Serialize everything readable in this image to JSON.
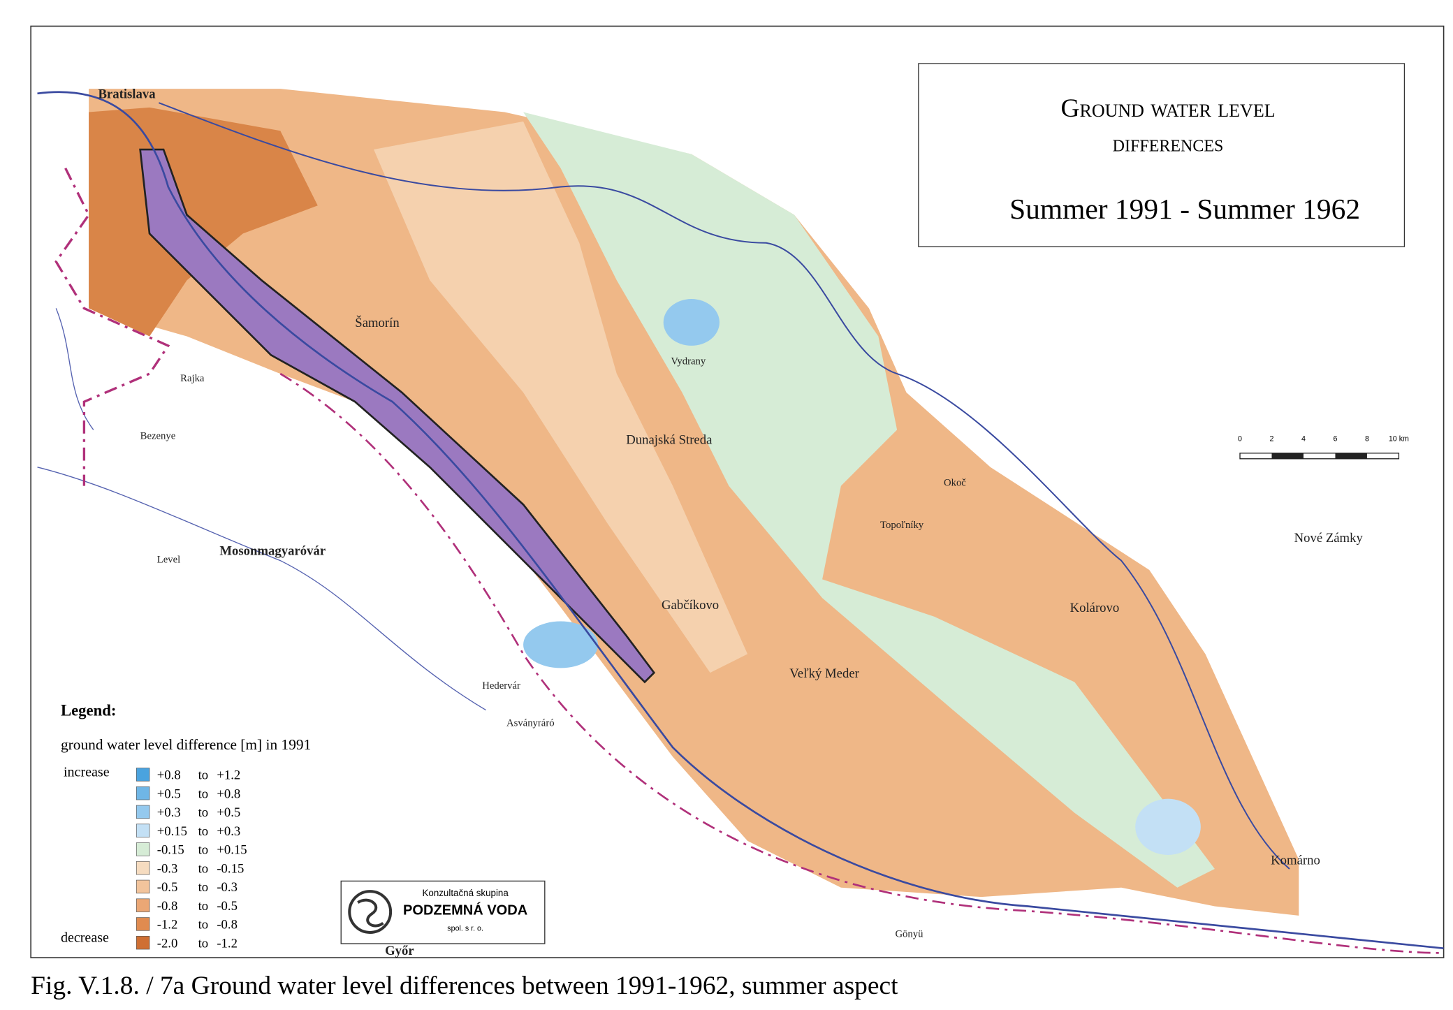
{
  "title": {
    "line1": "Ground water level",
    "line2": "differences",
    "period": "Summer 1991 - Summer 1962"
  },
  "legend": {
    "heading": "Legend:",
    "subtitle": "ground water level difference [m]  in 1991",
    "increase": "increase",
    "decrease": "decrease",
    "joiner": "to",
    "items": [
      {
        "from": "+0.8",
        "to": "+1.2",
        "color": "#4aa3df"
      },
      {
        "from": "+0.5",
        "to": "+0.8",
        "color": "#6fb6e6"
      },
      {
        "from": "+0.3",
        "to": "+0.5",
        "color": "#94c9ee"
      },
      {
        "from": "+0.15",
        "to": "+0.3",
        "color": "#c3e0f5"
      },
      {
        "from": "-0.15",
        "to": "+0.15",
        "color": "#d6ecd6"
      },
      {
        "from": "-0.3",
        "to": "-0.15",
        "color": "#f6dcc0"
      },
      {
        "from": "-0.5",
        "to": "-0.3",
        "color": "#f2c49c"
      },
      {
        "from": "-0.8",
        "to": "-0.5",
        "color": "#eba775"
      },
      {
        "from": "-1.2",
        "to": "-0.8",
        "color": "#e08b50"
      },
      {
        "from": "-2.0",
        "to": "-1.2",
        "color": "#cf6f33"
      }
    ]
  },
  "logo": {
    "line1": "Konzultačná skupina",
    "line2": "PODZEMNÁ VODA",
    "line3": "spol. s r. o."
  },
  "scale_bar": {
    "labels": [
      "0",
      "2",
      "4",
      "6",
      "8",
      "10 km"
    ]
  },
  "places": [
    "Bratislava",
    "Šamorín",
    "Dunajská Streda",
    "Gabčíkovo",
    "Veľký Meder",
    "Kolárovo",
    "Komárno",
    "Nové Zámky",
    "Mosonmagyaróvár",
    "Győr",
    "Rajka",
    "Hedervár",
    "Asványráró",
    "Okoč",
    "Topoľníky",
    "Vydrany",
    "Bezenye",
    "Level",
    "Gönyü"
  ],
  "caption": "Fig. V.1.8. / 7a  Ground water level differences between 1991-1962, summer aspect"
}
